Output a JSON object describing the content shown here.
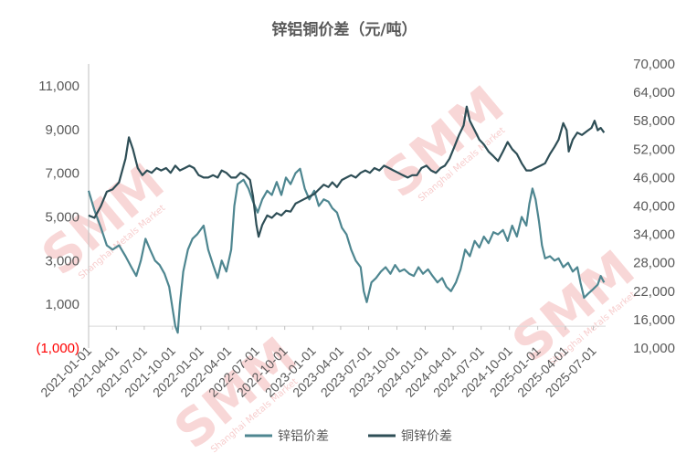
{
  "chart_data": {
    "type": "line",
    "title": "锌铝铜价差（元/吨）",
    "left_axis": {
      "ylim": [
        -1000,
        12000
      ],
      "ticks": [
        -1000,
        1000,
        3000,
        5000,
        7000,
        9000,
        11000
      ],
      "tick_labels": [
        "(1,000)",
        "1,000",
        "3,000",
        "5,000",
        "7,000",
        "9,000",
        "11,000"
      ],
      "negative_label_color": "#ff0000"
    },
    "right_axis": {
      "ylim": [
        10000,
        70000
      ],
      "ticks": [
        10000,
        16000,
        22000,
        28000,
        34000,
        40000,
        46000,
        52000,
        58000,
        64000,
        70000
      ],
      "tick_labels": [
        "10,000",
        "16,000",
        "22,000",
        "28,000",
        "34,000",
        "40,000",
        "46,000",
        "52,000",
        "58,000",
        "64,000",
        "70,000"
      ]
    },
    "x_axis": {
      "start": "2021-01-01",
      "end": "2025-08-10",
      "tick_labels": [
        "2021-01-01",
        "2021-04-01",
        "2021-07-01",
        "2021-10-01",
        "2022-01-01",
        "2022-04-01",
        "2022-07-01",
        "2022-10-01",
        "2023-01-01",
        "2023-04-01",
        "2023-07-01",
        "2023-10-01",
        "2024-01-01",
        "2024-04-01",
        "2024-07-01",
        "2024-10-01",
        "2025-01-01",
        "2025-04-01",
        "2025-07-01"
      ]
    },
    "grid": false,
    "legend_position": "bottom",
    "series": [
      {
        "name": "锌铝价差",
        "axis": "left",
        "color": "#4e8690",
        "points": [
          [
            "2021-01-01",
            6200
          ],
          [
            "2021-01-20",
            5300
          ],
          [
            "2021-02-10",
            4500
          ],
          [
            "2021-03-01",
            3700
          ],
          [
            "2021-03-20",
            3500
          ],
          [
            "2021-04-10",
            3700
          ],
          [
            "2021-05-01",
            3200
          ],
          [
            "2021-05-20",
            2700
          ],
          [
            "2021-06-05",
            2300
          ],
          [
            "2021-06-20",
            3000
          ],
          [
            "2021-07-05",
            4000
          ],
          [
            "2021-07-20",
            3500
          ],
          [
            "2021-08-05",
            3000
          ],
          [
            "2021-08-20",
            2800
          ],
          [
            "2021-09-05",
            2400
          ],
          [
            "2021-09-20",
            1800
          ],
          [
            "2021-10-01",
            800
          ],
          [
            "2021-10-10",
            0
          ],
          [
            "2021-10-18",
            -300
          ],
          [
            "2021-10-25",
            1000
          ],
          [
            "2021-11-05",
            2500
          ],
          [
            "2021-11-20",
            3500
          ],
          [
            "2021-12-05",
            4000
          ],
          [
            "2021-12-20",
            4200
          ],
          [
            "2022-01-10",
            4600
          ],
          [
            "2022-01-25",
            3500
          ],
          [
            "2022-02-10",
            2800
          ],
          [
            "2022-02-25",
            2200
          ],
          [
            "2022-03-10",
            3000
          ],
          [
            "2022-03-25",
            2500
          ],
          [
            "2022-04-10",
            3500
          ],
          [
            "2022-04-20",
            5500
          ],
          [
            "2022-05-01",
            6500
          ],
          [
            "2022-05-20",
            6700
          ],
          [
            "2022-06-05",
            6300
          ],
          [
            "2022-06-20",
            5700
          ],
          [
            "2022-07-05",
            5200
          ],
          [
            "2022-07-20",
            5800
          ],
          [
            "2022-08-05",
            6200
          ],
          [
            "2022-08-20",
            6000
          ],
          [
            "2022-09-05",
            6600
          ],
          [
            "2022-09-20",
            6000
          ],
          [
            "2022-10-05",
            6800
          ],
          [
            "2022-10-20",
            6500
          ],
          [
            "2022-11-05",
            7000
          ],
          [
            "2022-11-20",
            7200
          ],
          [
            "2022-12-05",
            6300
          ],
          [
            "2022-12-20",
            5800
          ],
          [
            "2023-01-05",
            6200
          ],
          [
            "2023-01-20",
            5500
          ],
          [
            "2023-02-05",
            5800
          ],
          [
            "2023-02-20",
            5700
          ],
          [
            "2023-03-05",
            5400
          ],
          [
            "2023-03-20",
            5200
          ],
          [
            "2023-04-05",
            4500
          ],
          [
            "2023-04-20",
            4200
          ],
          [
            "2023-05-05",
            3500
          ],
          [
            "2023-05-20",
            3000
          ],
          [
            "2023-06-05",
            2700
          ],
          [
            "2023-06-15",
            1600
          ],
          [
            "2023-06-25",
            1100
          ],
          [
            "2023-07-10",
            2000
          ],
          [
            "2023-07-25",
            2200
          ],
          [
            "2023-08-10",
            2500
          ],
          [
            "2023-08-25",
            2700
          ],
          [
            "2023-09-10",
            2400
          ],
          [
            "2023-09-25",
            2800
          ],
          [
            "2023-10-10",
            2500
          ],
          [
            "2023-10-25",
            2600
          ],
          [
            "2023-11-10",
            2400
          ],
          [
            "2023-11-25",
            2300
          ],
          [
            "2023-12-10",
            2700
          ],
          [
            "2023-12-25",
            2400
          ],
          [
            "2024-01-10",
            2600
          ],
          [
            "2024-01-25",
            2300
          ],
          [
            "2024-02-10",
            2000
          ],
          [
            "2024-02-25",
            2200
          ],
          [
            "2024-03-10",
            1800
          ],
          [
            "2024-03-25",
            1600
          ],
          [
            "2024-04-10",
            2000
          ],
          [
            "2024-04-25",
            2600
          ],
          [
            "2024-05-10",
            3500
          ],
          [
            "2024-05-25",
            3200
          ],
          [
            "2024-06-10",
            3900
          ],
          [
            "2024-06-25",
            3600
          ],
          [
            "2024-07-10",
            4100
          ],
          [
            "2024-07-25",
            3800
          ],
          [
            "2024-08-10",
            4300
          ],
          [
            "2024-08-25",
            4200
          ],
          [
            "2024-09-10",
            4400
          ],
          [
            "2024-09-25",
            3900
          ],
          [
            "2024-10-10",
            4600
          ],
          [
            "2024-10-25",
            4100
          ],
          [
            "2024-11-10",
            5000
          ],
          [
            "2024-11-25",
            4600
          ],
          [
            "2024-12-05",
            5600
          ],
          [
            "2024-12-15",
            6300
          ],
          [
            "2024-12-25",
            5800
          ],
          [
            "2025-01-05",
            4800
          ],
          [
            "2025-01-15",
            3700
          ],
          [
            "2025-01-25",
            3100
          ],
          [
            "2025-02-10",
            3200
          ],
          [
            "2025-02-25",
            3000
          ],
          [
            "2025-03-10",
            3100
          ],
          [
            "2025-03-25",
            2700
          ],
          [
            "2025-04-10",
            2900
          ],
          [
            "2025-04-25",
            2500
          ],
          [
            "2025-05-10",
            2700
          ],
          [
            "2025-05-20",
            2000
          ],
          [
            "2025-06-01",
            1300
          ],
          [
            "2025-06-15",
            1500
          ],
          [
            "2025-07-01",
            1700
          ],
          [
            "2025-07-15",
            1900
          ],
          [
            "2025-07-25",
            2300
          ],
          [
            "2025-08-05",
            2000
          ]
        ]
      },
      {
        "name": "铜锌价差",
        "axis": "right",
        "color": "#2e4e56",
        "points": [
          [
            "2021-01-01",
            38000
          ],
          [
            "2021-01-20",
            37500
          ],
          [
            "2021-02-10",
            40000
          ],
          [
            "2021-03-01",
            43000
          ],
          [
            "2021-03-20",
            43500
          ],
          [
            "2021-04-10",
            45000
          ],
          [
            "2021-05-01",
            50000
          ],
          [
            "2021-05-12",
            54500
          ],
          [
            "2021-05-25",
            52000
          ],
          [
            "2021-06-10",
            48000
          ],
          [
            "2021-06-25",
            46500
          ],
          [
            "2021-07-10",
            47500
          ],
          [
            "2021-07-25",
            47000
          ],
          [
            "2021-08-10",
            48000
          ],
          [
            "2021-08-25",
            47500
          ],
          [
            "2021-09-10",
            48000
          ],
          [
            "2021-09-25",
            47000
          ],
          [
            "2021-10-10",
            48500
          ],
          [
            "2021-10-25",
            47500
          ],
          [
            "2021-11-10",
            48000
          ],
          [
            "2021-11-25",
            48500
          ],
          [
            "2021-12-10",
            48000
          ],
          [
            "2021-12-25",
            46500
          ],
          [
            "2022-01-10",
            46000
          ],
          [
            "2022-01-25",
            46000
          ],
          [
            "2022-02-10",
            46500
          ],
          [
            "2022-02-25",
            46000
          ],
          [
            "2022-03-10",
            47500
          ],
          [
            "2022-03-25",
            47000
          ],
          [
            "2022-04-10",
            46000
          ],
          [
            "2022-04-25",
            46000
          ],
          [
            "2022-05-10",
            47000
          ],
          [
            "2022-05-25",
            46500
          ],
          [
            "2022-06-10",
            45500
          ],
          [
            "2022-06-20",
            42000
          ],
          [
            "2022-07-01",
            36000
          ],
          [
            "2022-07-08",
            33500
          ],
          [
            "2022-07-20",
            36000
          ],
          [
            "2022-08-05",
            38000
          ],
          [
            "2022-08-20",
            37500
          ],
          [
            "2022-09-05",
            38500
          ],
          [
            "2022-09-20",
            38000
          ],
          [
            "2022-10-05",
            39000
          ],
          [
            "2022-10-20",
            38800
          ],
          [
            "2022-11-05",
            40500
          ],
          [
            "2022-11-20",
            41000
          ],
          [
            "2022-12-05",
            41500
          ],
          [
            "2022-12-20",
            42000
          ],
          [
            "2023-01-05",
            42500
          ],
          [
            "2023-01-20",
            43500
          ],
          [
            "2023-02-05",
            44500
          ],
          [
            "2023-02-20",
            44000
          ],
          [
            "2023-03-05",
            45000
          ],
          [
            "2023-03-20",
            44000
          ],
          [
            "2023-04-05",
            45500
          ],
          [
            "2023-04-20",
            46000
          ],
          [
            "2023-05-05",
            46500
          ],
          [
            "2023-05-20",
            46000
          ],
          [
            "2023-06-05",
            47000
          ],
          [
            "2023-06-20",
            47500
          ],
          [
            "2023-07-05",
            47000
          ],
          [
            "2023-07-20",
            48000
          ],
          [
            "2023-08-05",
            47500
          ],
          [
            "2023-08-20",
            48500
          ],
          [
            "2023-09-05",
            48000
          ],
          [
            "2023-09-20",
            47500
          ],
          [
            "2023-10-05",
            47000
          ],
          [
            "2023-10-20",
            46500
          ],
          [
            "2023-11-05",
            46000
          ],
          [
            "2023-11-20",
            46500
          ],
          [
            "2023-12-05",
            46500
          ],
          [
            "2023-12-20",
            48000
          ],
          [
            "2024-01-05",
            48500
          ],
          [
            "2024-01-20",
            47500
          ],
          [
            "2024-02-05",
            47000
          ],
          [
            "2024-02-20",
            48000
          ],
          [
            "2024-03-05",
            48500
          ],
          [
            "2024-03-20",
            50000
          ],
          [
            "2024-04-05",
            52500
          ],
          [
            "2024-04-20",
            55000
          ],
          [
            "2024-05-05",
            57000
          ],
          [
            "2024-05-15",
            61000
          ],
          [
            "2024-05-25",
            58000
          ],
          [
            "2024-06-10",
            56000
          ],
          [
            "2024-06-25",
            54000
          ],
          [
            "2024-07-10",
            53000
          ],
          [
            "2024-07-25",
            51500
          ],
          [
            "2024-08-10",
            50500
          ],
          [
            "2024-08-25",
            49500
          ],
          [
            "2024-09-10",
            51500
          ],
          [
            "2024-09-25",
            53500
          ],
          [
            "2024-10-10",
            52000
          ],
          [
            "2024-10-25",
            51000
          ],
          [
            "2024-11-10",
            49000
          ],
          [
            "2024-11-25",
            47500
          ],
          [
            "2024-12-10",
            47500
          ],
          [
            "2024-12-25",
            48000
          ],
          [
            "2025-01-10",
            48500
          ],
          [
            "2025-01-25",
            49000
          ],
          [
            "2025-02-10",
            51000
          ],
          [
            "2025-02-25",
            52500
          ],
          [
            "2025-03-10",
            54000
          ],
          [
            "2025-03-25",
            57500
          ],
          [
            "2025-04-05",
            56000
          ],
          [
            "2025-04-12",
            51500
          ],
          [
            "2025-04-25",
            54000
          ],
          [
            "2025-05-10",
            55500
          ],
          [
            "2025-05-25",
            55000
          ],
          [
            "2025-06-10",
            55800
          ],
          [
            "2025-06-25",
            56500
          ],
          [
            "2025-07-05",
            58000
          ],
          [
            "2025-07-15",
            56000
          ],
          [
            "2025-07-25",
            56500
          ],
          [
            "2025-08-05",
            55500
          ]
        ]
      }
    ]
  },
  "watermark": {
    "text": "SMM",
    "subtext": "Shanghai Metals Market",
    "color": "#f4b8b8"
  }
}
